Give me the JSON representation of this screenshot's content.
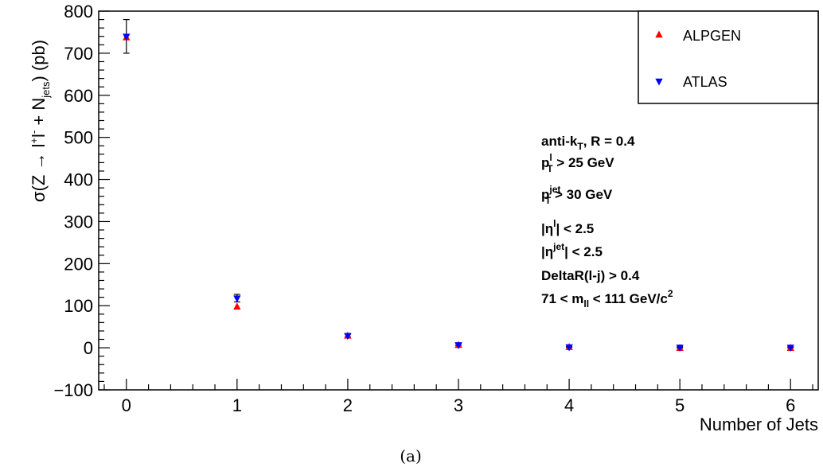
{
  "chart_data": {
    "type": "scatter",
    "xlabel": "Number of Jets",
    "ylabel": {
      "pre": "σ(Z → l",
      "sup1": "+",
      "mid": "l",
      "sup2": "-",
      "post": " + N",
      "sub": "jets",
      "end": ") (pb)"
    },
    "xlim": [
      -0.25,
      6.25
    ],
    "ylim": [
      -100,
      800
    ],
    "x_ticks": [
      "0",
      "1",
      "2",
      "3",
      "4",
      "5",
      "6"
    ],
    "y_ticks": [
      "−100",
      "0",
      "100",
      "200",
      "300",
      "400",
      "500",
      "600",
      "700",
      "800"
    ],
    "grid": false,
    "legend_position": "top-right",
    "series": [
      {
        "name": "ALPGEN",
        "marker": "triangle-up",
        "color": "#ff0000",
        "x": [
          0,
          1,
          2,
          3,
          4,
          5,
          6
        ],
        "y": [
          737,
          97,
          28,
          6,
          1,
          -1,
          -1
        ]
      },
      {
        "name": "ATLAS",
        "marker": "triangle-down",
        "color": "#0000ff",
        "x": [
          0,
          1,
          2,
          3,
          4,
          5,
          6
        ],
        "y": [
          740,
          118,
          29,
          7,
          2,
          1,
          1
        ],
        "yerr": [
          40,
          9,
          3,
          2,
          1,
          1,
          1
        ]
      }
    ],
    "annotations": [
      {
        "main": "anti-k",
        "sub": "T",
        "tail": ", R = 0.4"
      },
      {
        "main": "p",
        "sup": "l",
        "sub": "T",
        "tail": " > 25 GeV"
      },
      {
        "main": "p",
        "sup": "jet",
        "sub": "T",
        "tail": " > 30 GeV"
      },
      {
        "main": "|η",
        "sup": "l",
        "tail": "| < 2.5"
      },
      {
        "main": "|η",
        "sup": "jet",
        "tail": "| < 2.5"
      },
      {
        "main": "DeltaR(l-j) > 0.4"
      },
      {
        "main": "71 < m",
        "sub": "ll",
        "tail": " < 111 GeV/c",
        "sup": "2"
      }
    ]
  },
  "caption": "(a)"
}
